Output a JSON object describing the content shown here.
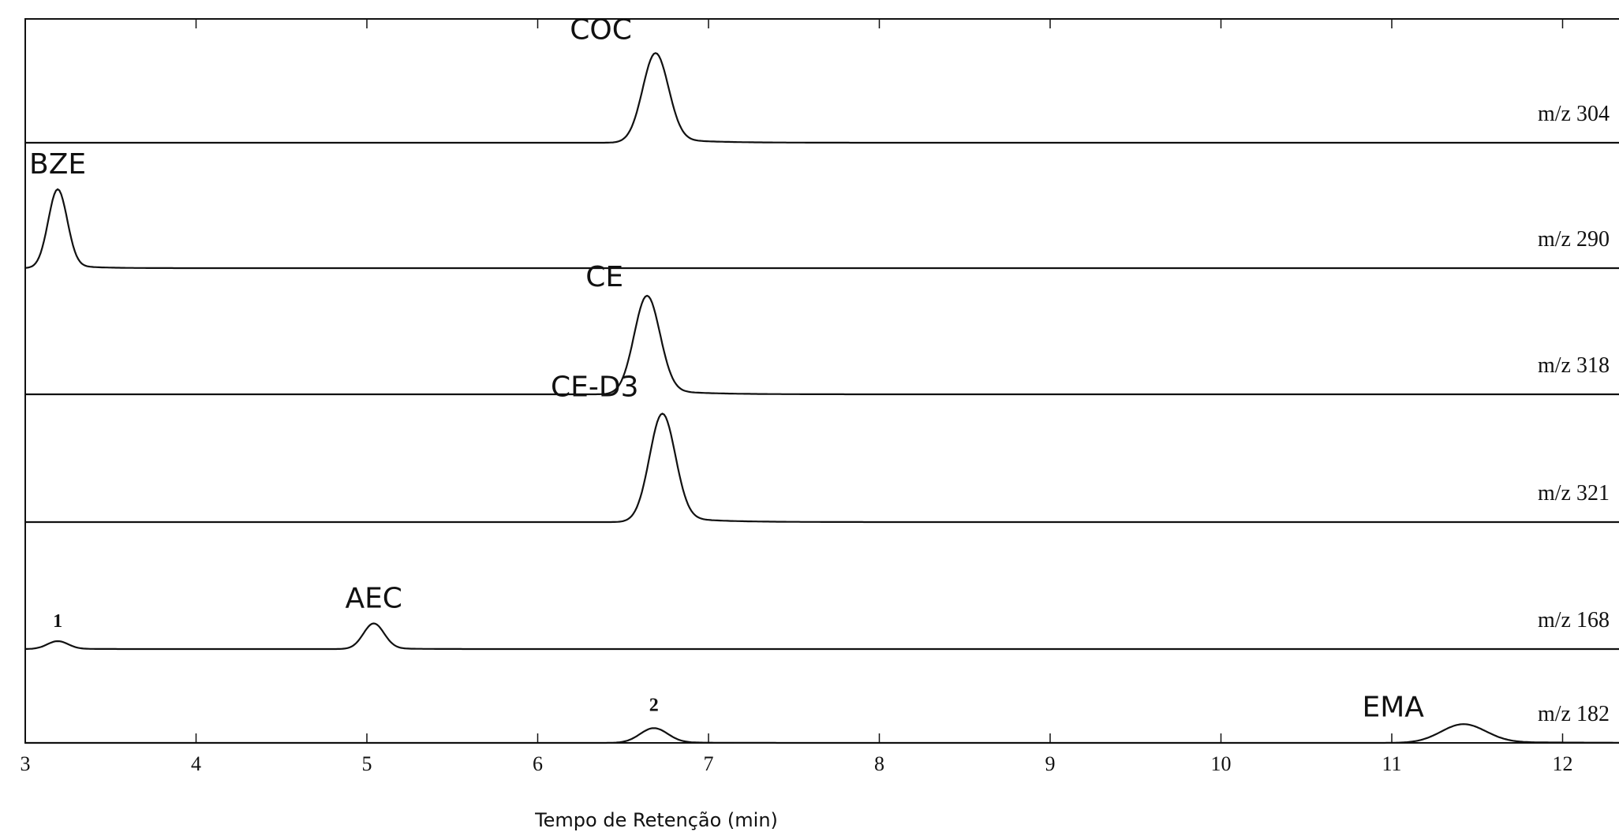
{
  "chart_data": {
    "type": "line",
    "xlabel": "Tempo de Retenção (min)",
    "xlim": [
      3,
      12.42
    ],
    "x_ticks": [
      "3",
      "4",
      "5",
      "6",
      "7",
      "8",
      "9",
      "10",
      "11",
      "12"
    ],
    "grid": false,
    "series": [
      {
        "name": "m/z 304",
        "peaks": [
          {
            "label": "COC",
            "rt": 6.69,
            "height": 0.91,
            "width": 0.075,
            "tail": 0.06
          }
        ]
      },
      {
        "name": "m/z 290",
        "peaks": [
          {
            "label": "BZE",
            "rt": 3.19,
            "height": 0.8,
            "width": 0.055,
            "tail": 0.03
          }
        ]
      },
      {
        "name": "m/z 318",
        "peaks": [
          {
            "label": "CE",
            "rt": 6.64,
            "height": 1.0,
            "width": 0.075,
            "tail": 0.06
          }
        ]
      },
      {
        "name": "m/z 321",
        "peaks": [
          {
            "label": "CE-D3",
            "rt": 6.73,
            "height": 1.1,
            "width": 0.075,
            "tail": 0.06
          }
        ]
      },
      {
        "name": "m/z 168",
        "peaks": [
          {
            "label": "1",
            "rt": 3.19,
            "height": 0.08,
            "width": 0.06,
            "tail": 0.03
          },
          {
            "label": "AEC",
            "rt": 5.04,
            "height": 0.26,
            "width": 0.06,
            "tail": 0.03
          }
        ]
      },
      {
        "name": "m/z 182",
        "peaks": [
          {
            "label": "2",
            "rt": 6.68,
            "height": 0.15,
            "width": 0.08,
            "tail": 0.06
          },
          {
            "label": "EMA",
            "rt": 11.42,
            "height": 0.19,
            "width": 0.13,
            "tail": 0.15
          }
        ]
      }
    ]
  }
}
